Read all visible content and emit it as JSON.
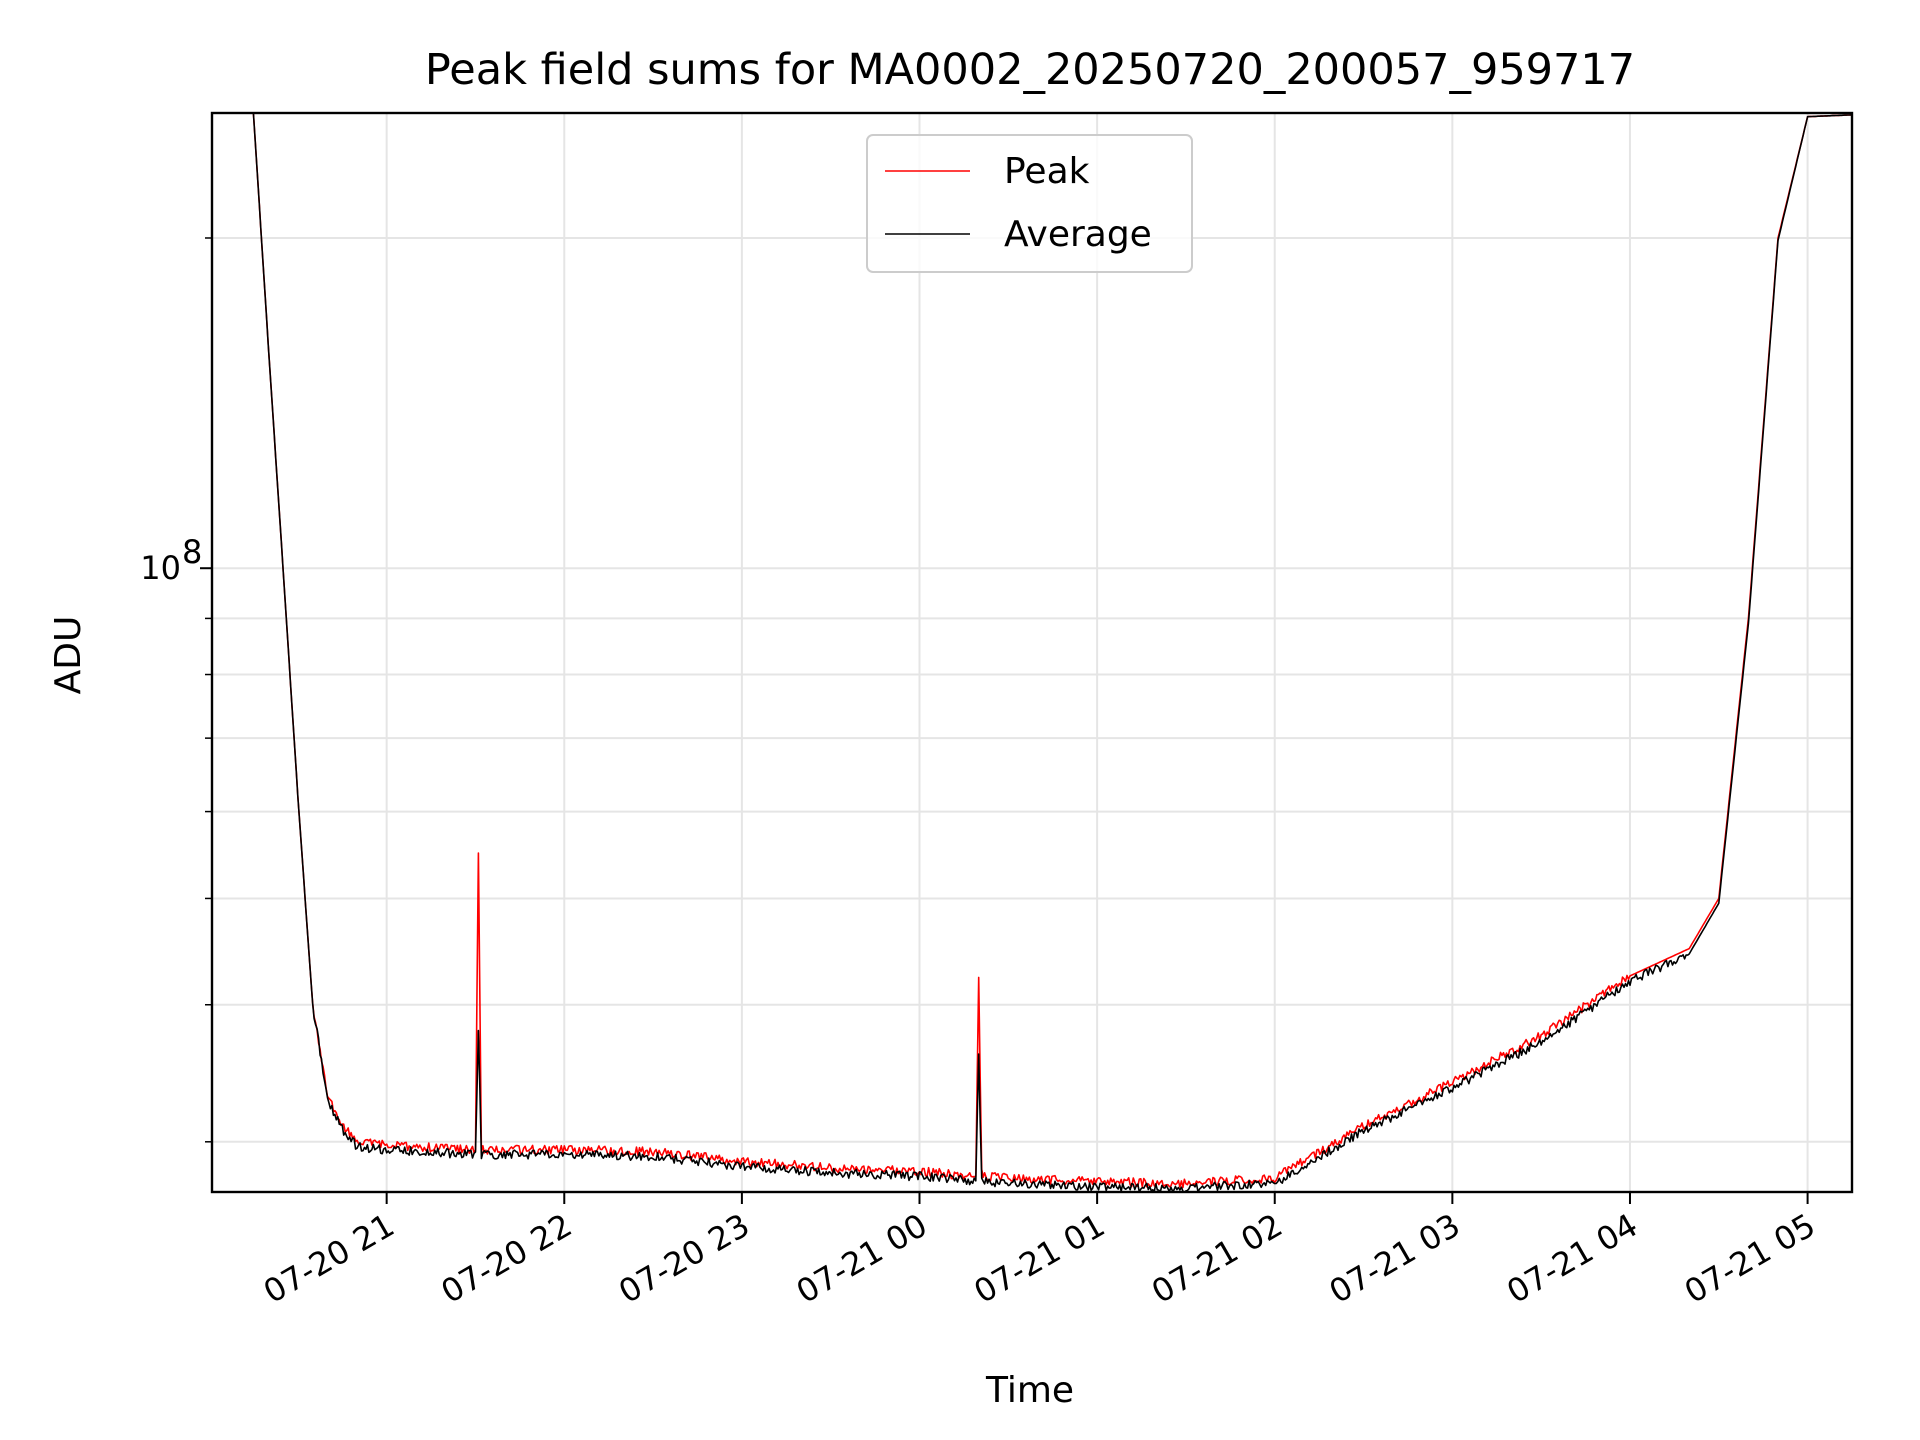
{
  "chart_data": {
    "type": "line",
    "title": "Peak field sums for MA0002_20250720_200057_959717",
    "xlabel": "Time",
    "ylabel": "ADU",
    "yscale": "log",
    "ylim": [
      27000000,
      260000000
    ],
    "xlim": [
      "2025-07-20 20:01",
      "2025-07-21 05:15"
    ],
    "grid": true,
    "legend_position": "upper-center",
    "x_ticks": [
      {
        "x": "2025-07-20 21:00",
        "label": "07-20 21"
      },
      {
        "x": "2025-07-20 22:00",
        "label": "07-20 22"
      },
      {
        "x": "2025-07-20 23:00",
        "label": "07-20 23"
      },
      {
        "x": "2025-07-21 00:00",
        "label": "07-21 00"
      },
      {
        "x": "2025-07-21 01:00",
        "label": "07-21 01"
      },
      {
        "x": "2025-07-21 02:00",
        "label": "07-21 02"
      },
      {
        "x": "2025-07-21 03:00",
        "label": "07-21 03"
      },
      {
        "x": "2025-07-21 04:00",
        "label": "07-21 04"
      },
      {
        "x": "2025-07-21 05:00",
        "label": "07-21 05"
      }
    ],
    "y_ticks": [
      {
        "y": 100000000,
        "label": "10",
        "exponent": "8"
      }
    ],
    "series": [
      {
        "name": "Peak",
        "color": "#ff0000",
        "x": [
          "2025-07-20 20:01",
          "2025-07-20 20:15",
          "2025-07-20 20:20",
          "2025-07-20 20:25",
          "2025-07-20 20:30",
          "2025-07-20 20:35",
          "2025-07-20 20:40",
          "2025-07-20 20:45",
          "2025-07-20 20:50",
          "2025-07-20 21:00",
          "2025-07-20 21:30",
          "2025-07-20 21:31",
          "2025-07-20 21:32",
          "2025-07-20 21:33",
          "2025-07-20 22:00",
          "2025-07-20 22:30",
          "2025-07-20 23:00",
          "2025-07-20 23:30",
          "2025-07-21 00:00",
          "2025-07-21 00:19",
          "2025-07-21 00:20",
          "2025-07-21 00:21",
          "2025-07-21 00:22",
          "2025-07-21 00:30",
          "2025-07-21 01:00",
          "2025-07-21 01:30",
          "2025-07-21 02:00",
          "2025-07-21 02:30",
          "2025-07-21 03:00",
          "2025-07-21 03:30",
          "2025-07-21 04:00",
          "2025-07-21 04:20",
          "2025-07-21 04:30",
          "2025-07-21 04:40",
          "2025-07-21 04:50",
          "2025-07-21 05:00",
          "2025-07-21 05:15"
        ],
        "values": [
          260000000,
          260000000,
          160000000,
          100000000,
          62000000,
          40000000,
          33000000,
          31000000,
          30000000,
          29800000,
          29500000,
          55000000,
          29600000,
          29500000,
          29500000,
          29400000,
          28800000,
          28400000,
          28200000,
          27900000,
          42000000,
          28200000,
          27900000,
          27800000,
          27600000,
          27500000,
          27800000,
          31000000,
          34000000,
          37500000,
          42500000,
          45000000,
          50000000,
          90000000,
          200000000,
          258000000,
          259000000
        ]
      },
      {
        "name": "Average",
        "color": "#000000",
        "x": [
          "2025-07-20 20:01",
          "2025-07-20 20:15",
          "2025-07-20 20:20",
          "2025-07-20 20:25",
          "2025-07-20 20:30",
          "2025-07-20 20:35",
          "2025-07-20 20:40",
          "2025-07-20 20:45",
          "2025-07-20 20:50",
          "2025-07-20 21:00",
          "2025-07-20 21:30",
          "2025-07-20 21:31",
          "2025-07-20 21:32",
          "2025-07-20 21:33",
          "2025-07-20 22:00",
          "2025-07-20 22:30",
          "2025-07-20 23:00",
          "2025-07-20 23:30",
          "2025-07-21 00:00",
          "2025-07-21 00:19",
          "2025-07-21 00:20",
          "2025-07-21 00:21",
          "2025-07-21 00:22",
          "2025-07-21 00:30",
          "2025-07-21 01:00",
          "2025-07-21 01:30",
          "2025-07-21 02:00",
          "2025-07-21 02:30",
          "2025-07-21 03:00",
          "2025-07-21 03:30",
          "2025-07-21 04:00",
          "2025-07-21 04:20",
          "2025-07-21 04:30",
          "2025-07-21 04:40",
          "2025-07-21 04:50",
          "2025-07-21 05:00",
          "2025-07-21 05:15"
        ],
        "values": [
          260000000,
          260000000,
          160000000,
          100000000,
          62000000,
          40000000,
          32800000,
          30800000,
          29700000,
          29500000,
          29200000,
          38000000,
          29200000,
          29200000,
          29200000,
          29100000,
          28500000,
          28100000,
          27900000,
          27600000,
          36000000,
          27700000,
          27600000,
          27500000,
          27300000,
          27200000,
          27500000,
          30700000,
          33600000,
          37000000,
          42000000,
          44500000,
          49500000,
          89000000,
          199000000,
          258000000,
          259000000
        ]
      }
    ]
  }
}
